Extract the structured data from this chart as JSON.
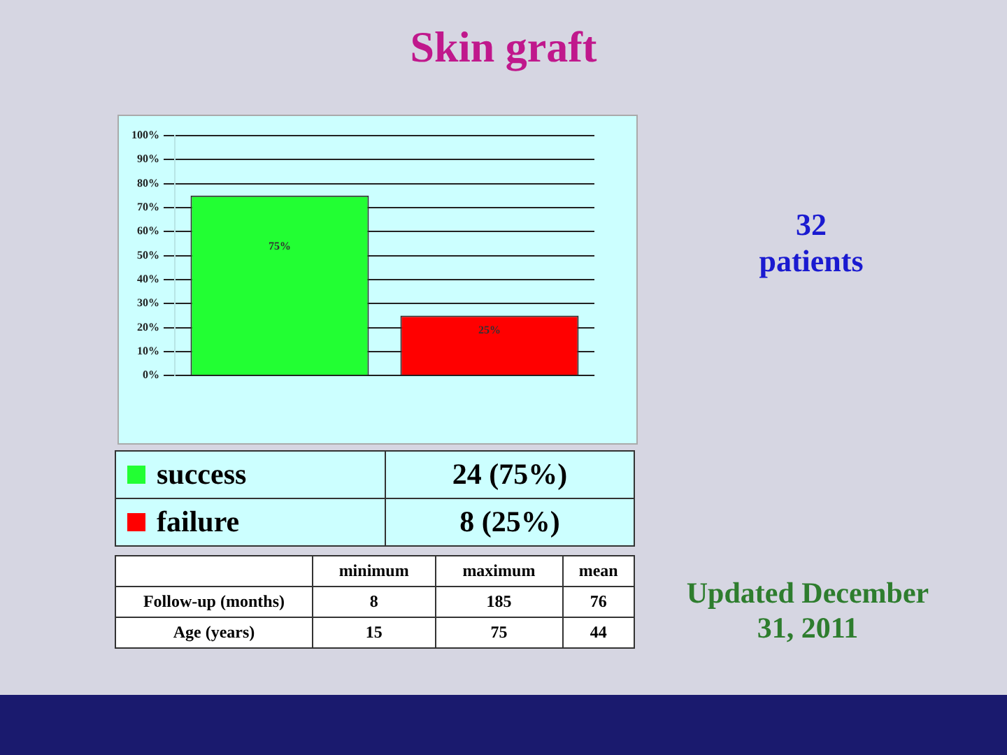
{
  "chart_data": {
    "type": "bar",
    "title": "Skin graft",
    "categories": [
      null,
      null
    ],
    "stacked": true,
    "series": [
      {
        "name": "success",
        "color": "#22ff33",
        "values": [
          75,
          null
        ],
        "value_labels": [
          "75%",
          null
        ]
      },
      {
        "name": "failure",
        "color": "#ff0000",
        "values": [
          null,
          25
        ],
        "value_labels": [
          null,
          "25%"
        ]
      }
    ],
    "ylim": [
      0,
      100
    ],
    "yticks": [
      {
        "value": 0,
        "label": "0%"
      },
      {
        "value": 10,
        "label": "10%"
      },
      {
        "value": 20,
        "label": "20%"
      },
      {
        "value": 30,
        "label": "30%"
      },
      {
        "value": 40,
        "label": "40%"
      },
      {
        "value": 50,
        "label": "50%"
      },
      {
        "value": 60,
        "label": "60%"
      },
      {
        "value": 70,
        "label": "70%"
      },
      {
        "value": 80,
        "label": "80%"
      },
      {
        "value": 90,
        "label": "90%"
      },
      {
        "value": 100,
        "label": "100%"
      }
    ],
    "grid": "y",
    "legend": "bottom",
    "annotations": [
      "24 (75%)",
      "8 (25%)",
      "minimum",
      "maximum",
      "mean",
      "Follow-up (months)",
      "8",
      "185",
      "76",
      "Age (years)",
      "15",
      "75",
      "44",
      "32 patients",
      "Updated December 31, 2011"
    ]
  }
}
